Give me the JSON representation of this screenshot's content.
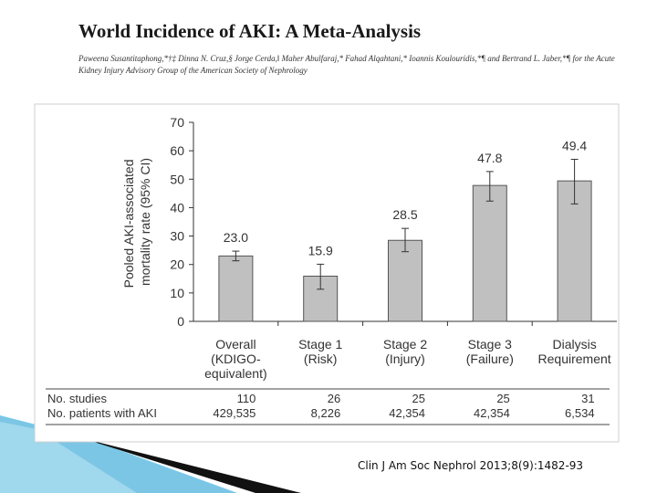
{
  "slide": {
    "title": "World Incidence of AKI: A Meta-Analysis",
    "authors": "Paweena Susantitaphong,*†‡ Dinna N. Cruz,§ Jorge Cerda,‖ Maher Abulfaraj,* Fahad Alqahtani,* Ioannis Koulouridis,*¶ and Bertrand L. Jaber,*¶ for the Acute Kidney Injury Advisory Group of the American Society of Nephrology",
    "citation": "Clin J Am Soc Nephrol 2013;8(9):1482-93"
  },
  "colors": {
    "bar_fill": "#c0c0c0",
    "bar_stroke": "#555555",
    "accent_blue": "#5bb8de",
    "accent_dark": "#111111"
  },
  "chart_data": {
    "type": "bar",
    "title": "",
    "xlabel": "",
    "ylabel": "Pooled AKI-associated mortality rate (95% CI)",
    "ylabel_lines": [
      "Pooled AKI-associated",
      "mortality rate (95% CI)"
    ],
    "ylim": [
      0,
      70
    ],
    "yticks": [
      0,
      10,
      20,
      30,
      40,
      50,
      60,
      70
    ],
    "grid": false,
    "categories": [
      [
        "Overall",
        "(KDIGO-",
        "equivalent)"
      ],
      [
        "Stage 1",
        "(Risk)"
      ],
      [
        "Stage 2",
        "(Injury)"
      ],
      [
        "Stage 3",
        "(Failure)"
      ],
      [
        "Dialysis",
        "Requirement"
      ]
    ],
    "values": [
      23.0,
      15.9,
      28.5,
      47.8,
      49.4
    ],
    "value_labels": [
      "23.0",
      "15.9",
      "28.5",
      "47.8",
      "49.4"
    ],
    "ci_low": [
      21.3,
      11.3,
      24.5,
      42.3,
      41.3
    ],
    "ci_high": [
      24.7,
      20.1,
      32.7,
      52.7,
      57.0
    ],
    "table": {
      "rows": [
        {
          "label": "No. studies",
          "values": [
            "110",
            "26",
            "25",
            "25",
            "31"
          ]
        },
        {
          "label": "No. patients with AKI",
          "values": [
            "429,535",
            "8,226",
            "42,354",
            "42,354",
            "6,534"
          ]
        }
      ]
    }
  }
}
